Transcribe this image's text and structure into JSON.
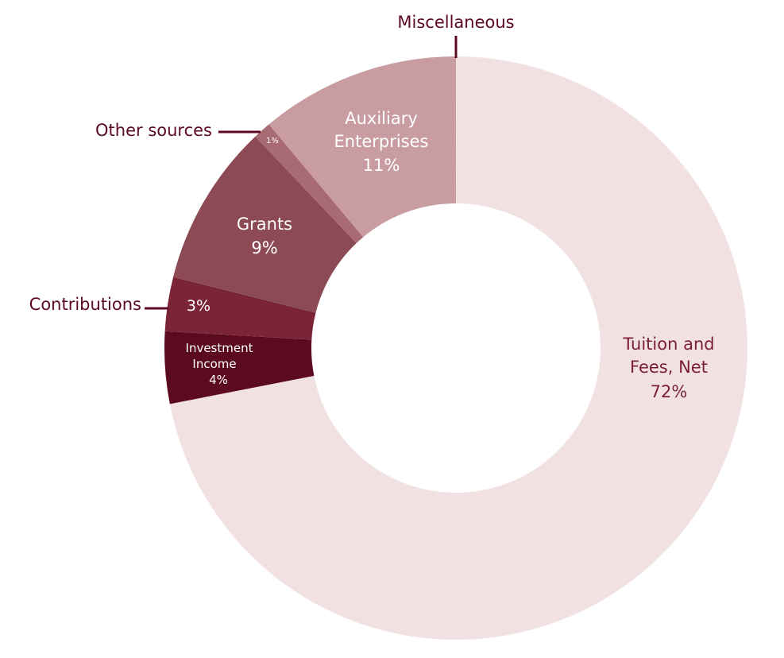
{
  "chart_data": {
    "type": "pie",
    "donut": true,
    "title": "",
    "legend": "none",
    "slices": [
      {
        "label": "Tuition and Fees, Net",
        "value": 72,
        "value_label": "72%",
        "color": "#f2e1e2",
        "text_color": "#7a1f33"
      },
      {
        "label": "Investment Income",
        "value": 4,
        "value_label": "4%",
        "color": "#5c0a20",
        "text_color": "#ffffff"
      },
      {
        "label": "Contributions",
        "value": 3,
        "value_label": "3%",
        "color": "#7b2437",
        "text_color": "#ffffff"
      },
      {
        "label": "Grants",
        "value": 9,
        "value_label": "9%",
        "color": "#8c4a54",
        "text_color": "#ffffff"
      },
      {
        "label": "Other sources",
        "value": 1,
        "value_label": "1%",
        "color": "#a86a73",
        "text_color": "#ffffff"
      },
      {
        "label": "Auxiliary Enterprises",
        "value": 11,
        "value_label": "11%",
        "color": "#c89ca1",
        "text_color": "#ffffff"
      },
      {
        "label": "Miscellaneous",
        "value": 0.1,
        "value_label": "",
        "color": "#c89ca1",
        "text_color": "#5c0a20"
      }
    ],
    "inside_labels": {
      "tuition": {
        "lines": [
          "Tuition and",
          "Fees, Net",
          "72%"
        ]
      },
      "investment": {
        "lines": [
          "Investment",
          "Income",
          "4%"
        ]
      },
      "contributions": {
        "lines": [
          "3%"
        ]
      },
      "grants": {
        "lines": [
          "Grants",
          "9%"
        ]
      },
      "other": {
        "lines": [
          "1%"
        ]
      },
      "auxiliary": {
        "lines": [
          "Auxiliary",
          "Enterprises",
          "11%"
        ]
      }
    },
    "callouts": {
      "miscellaneous": "Miscellaneous",
      "other_sources": "Other sources",
      "contributions": "Contributions"
    }
  },
  "colors": {
    "callout_text": "#5c0a20",
    "leader_line": "#5c0a20"
  }
}
